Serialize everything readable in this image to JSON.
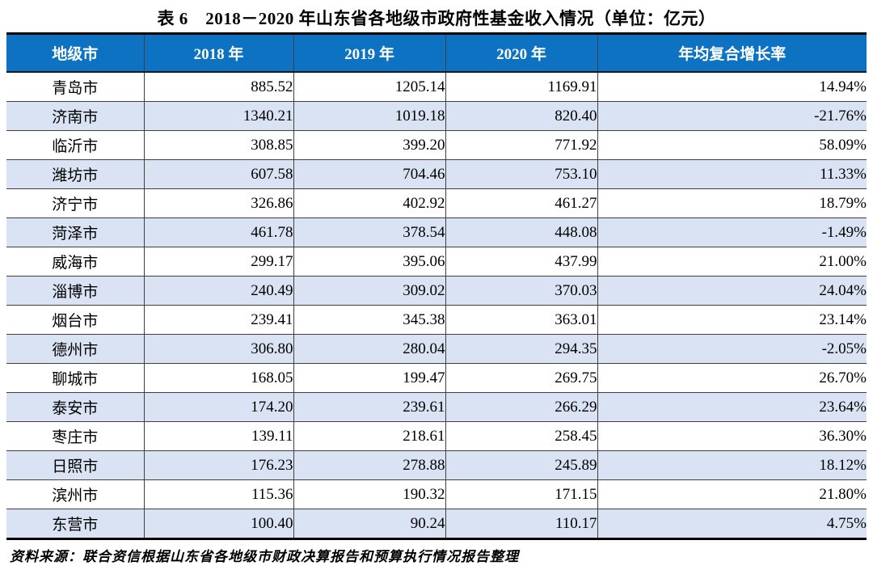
{
  "title": "表 6　2018－2020 年山东省各地级市政府性基金收入情况（单位：亿元）",
  "source_note": "资料来源：联合资信根据山东省各地级市财政决算报告和预算执行情况报告整理",
  "colors": {
    "header_bg": "#0d72c2",
    "header_text": "#ffffff",
    "stripe_bg": "#dae3f3",
    "grid_line": "#3f3f3f",
    "outer_border": "#000000"
  },
  "chart_data": {
    "type": "table",
    "title": "表 6　2018－2020 年山东省各地级市政府性基金收入情况（单位：亿元）",
    "columns": [
      "地级市",
      "2018 年",
      "2019 年",
      "2020 年",
      "年均复合增长率"
    ],
    "rows": [
      [
        "青岛市",
        "885.52",
        "1205.14",
        "1169.91",
        "14.94%"
      ],
      [
        "济南市",
        "1340.21",
        "1019.18",
        "820.40",
        "-21.76%"
      ],
      [
        "临沂市",
        "308.85",
        "399.20",
        "771.92",
        "58.09%"
      ],
      [
        "潍坊市",
        "607.58",
        "704.46",
        "753.10",
        "11.33%"
      ],
      [
        "济宁市",
        "326.86",
        "402.92",
        "461.27",
        "18.79%"
      ],
      [
        "菏泽市",
        "461.78",
        "378.54",
        "448.08",
        "-1.49%"
      ],
      [
        "威海市",
        "299.17",
        "395.06",
        "437.99",
        "21.00%"
      ],
      [
        "淄博市",
        "240.49",
        "309.02",
        "370.03",
        "24.04%"
      ],
      [
        "烟台市",
        "239.41",
        "345.38",
        "363.01",
        "23.14%"
      ],
      [
        "德州市",
        "306.80",
        "280.04",
        "294.35",
        "-2.05%"
      ],
      [
        "聊城市",
        "168.05",
        "199.47",
        "269.75",
        "26.70%"
      ],
      [
        "泰安市",
        "174.20",
        "239.61",
        "266.29",
        "23.64%"
      ],
      [
        "枣庄市",
        "139.11",
        "218.61",
        "258.45",
        "36.30%"
      ],
      [
        "日照市",
        "176.23",
        "278.88",
        "245.89",
        "18.12%"
      ],
      [
        "滨州市",
        "115.36",
        "190.32",
        "171.15",
        "21.80%"
      ],
      [
        "东营市",
        "100.40",
        "90.24",
        "110.17",
        "4.75%"
      ]
    ]
  }
}
